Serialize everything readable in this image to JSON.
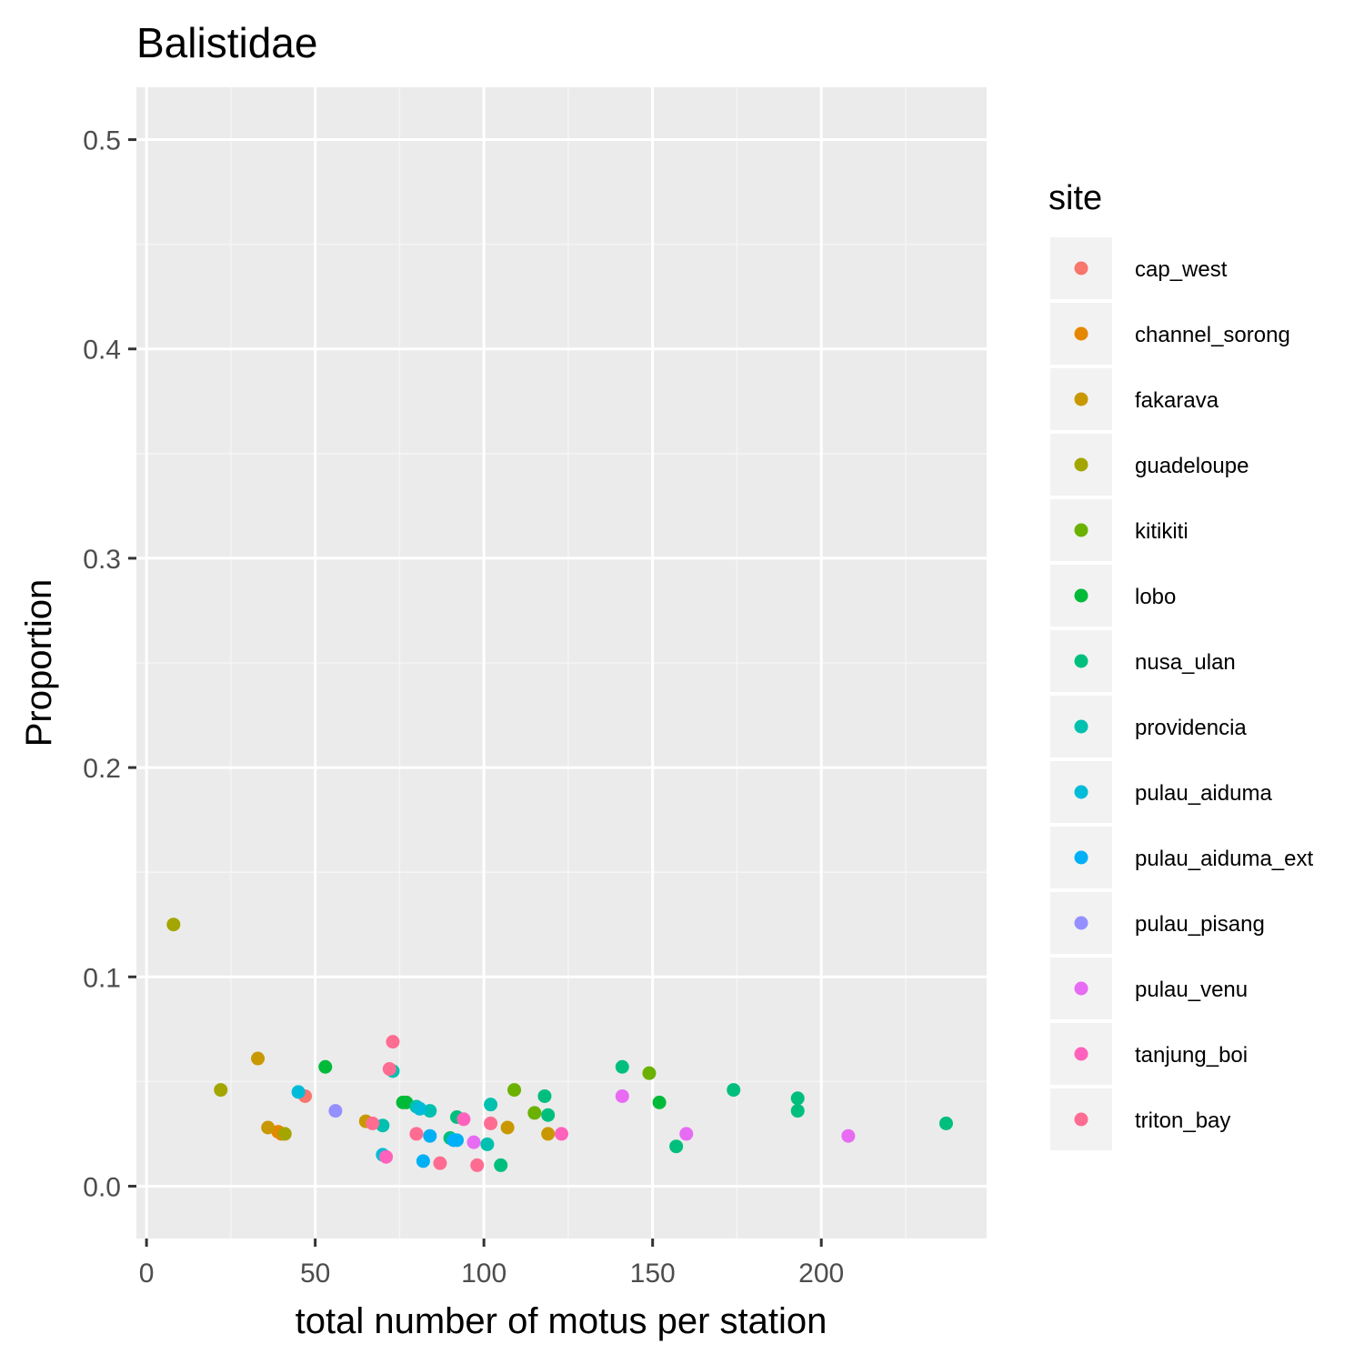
{
  "chart_data": {
    "type": "scatter",
    "title": "Balistidae",
    "xlabel": "total number of motus per station",
    "ylabel": "Proportion",
    "xlim": [
      -3,
      249
    ],
    "ylim": [
      -0.025,
      0.525
    ],
    "x_ticks": [
      0,
      50,
      100,
      150,
      200
    ],
    "x_tick_labels": [
      "0",
      "50",
      "100",
      "150",
      "200"
    ],
    "y_ticks": [
      0.0,
      0.1,
      0.2,
      0.3,
      0.4,
      0.5
    ],
    "y_tick_labels": [
      "0.0",
      "0.1",
      "0.2",
      "0.3",
      "0.4",
      "0.5"
    ],
    "grid": true,
    "legend": {
      "title": "site",
      "position": "right"
    },
    "series": [
      {
        "name": "cap_west",
        "color": "#F8766D",
        "points": [
          [
            47,
            0.043
          ]
        ]
      },
      {
        "name": "channel_sorong",
        "color": "#E58700",
        "points": [
          [
            39,
            0.026
          ],
          [
            40,
            0.025
          ]
        ]
      },
      {
        "name": "fakarava",
        "color": "#C99800",
        "points": [
          [
            33,
            0.061
          ],
          [
            36,
            0.028
          ],
          [
            65,
            0.031
          ],
          [
            107,
            0.028
          ],
          [
            119,
            0.025
          ]
        ]
      },
      {
        "name": "guadeloupe",
        "color": "#A3A500",
        "points": [
          [
            8,
            0.125
          ],
          [
            22,
            0.046
          ],
          [
            41,
            0.025
          ]
        ]
      },
      {
        "name": "kitikiti",
        "color": "#6BB100",
        "points": [
          [
            109,
            0.046
          ],
          [
            115,
            0.035
          ],
          [
            149,
            0.054
          ]
        ]
      },
      {
        "name": "lobo",
        "color": "#00BA38",
        "points": [
          [
            53,
            0.057
          ],
          [
            76,
            0.04
          ],
          [
            77,
            0.04
          ],
          [
            152,
            0.04
          ]
        ]
      },
      {
        "name": "nusa_ulan",
        "color": "#00BF7D",
        "points": [
          [
            90,
            0.023
          ],
          [
            92,
            0.033
          ],
          [
            105,
            0.01
          ],
          [
            118,
            0.043
          ],
          [
            119,
            0.034
          ],
          [
            141,
            0.057
          ],
          [
            157,
            0.019
          ],
          [
            174,
            0.046
          ],
          [
            193,
            0.042
          ],
          [
            193,
            0.036
          ],
          [
            237,
            0.03
          ]
        ]
      },
      {
        "name": "providencia",
        "color": "#00C0AF",
        "points": [
          [
            70,
            0.029
          ],
          [
            73,
            0.055
          ],
          [
            80,
            0.038
          ],
          [
            84,
            0.036
          ],
          [
            101,
            0.02
          ],
          [
            102,
            0.039
          ]
        ]
      },
      {
        "name": "pulau_aiduma",
        "color": "#00BCD8",
        "points": [
          [
            45,
            0.045
          ],
          [
            70,
            0.015
          ],
          [
            81,
            0.037
          ]
        ]
      },
      {
        "name": "pulau_aiduma_ext",
        "color": "#00B0F6",
        "points": [
          [
            82,
            0.012
          ],
          [
            84,
            0.024
          ],
          [
            91,
            0.022
          ],
          [
            92,
            0.022
          ]
        ]
      },
      {
        "name": "pulau_pisang",
        "color": "#9590FF",
        "points": [
          [
            56,
            0.036
          ]
        ]
      },
      {
        "name": "pulau_venu",
        "color": "#E76BF3",
        "points": [
          [
            97,
            0.021
          ],
          [
            141,
            0.043
          ],
          [
            160,
            0.025
          ],
          [
            208,
            0.024
          ]
        ]
      },
      {
        "name": "tanjung_boi",
        "color": "#FF62BC",
        "points": [
          [
            71,
            0.014
          ],
          [
            94,
            0.032
          ],
          [
            123,
            0.025
          ]
        ]
      },
      {
        "name": "triton_bay",
        "color": "#FF6C91",
        "points": [
          [
            67,
            0.03
          ],
          [
            72,
            0.056
          ],
          [
            73,
            0.069
          ],
          [
            80,
            0.025
          ],
          [
            87,
            0.011
          ],
          [
            98,
            0.01
          ],
          [
            102,
            0.03
          ]
        ]
      }
    ]
  }
}
